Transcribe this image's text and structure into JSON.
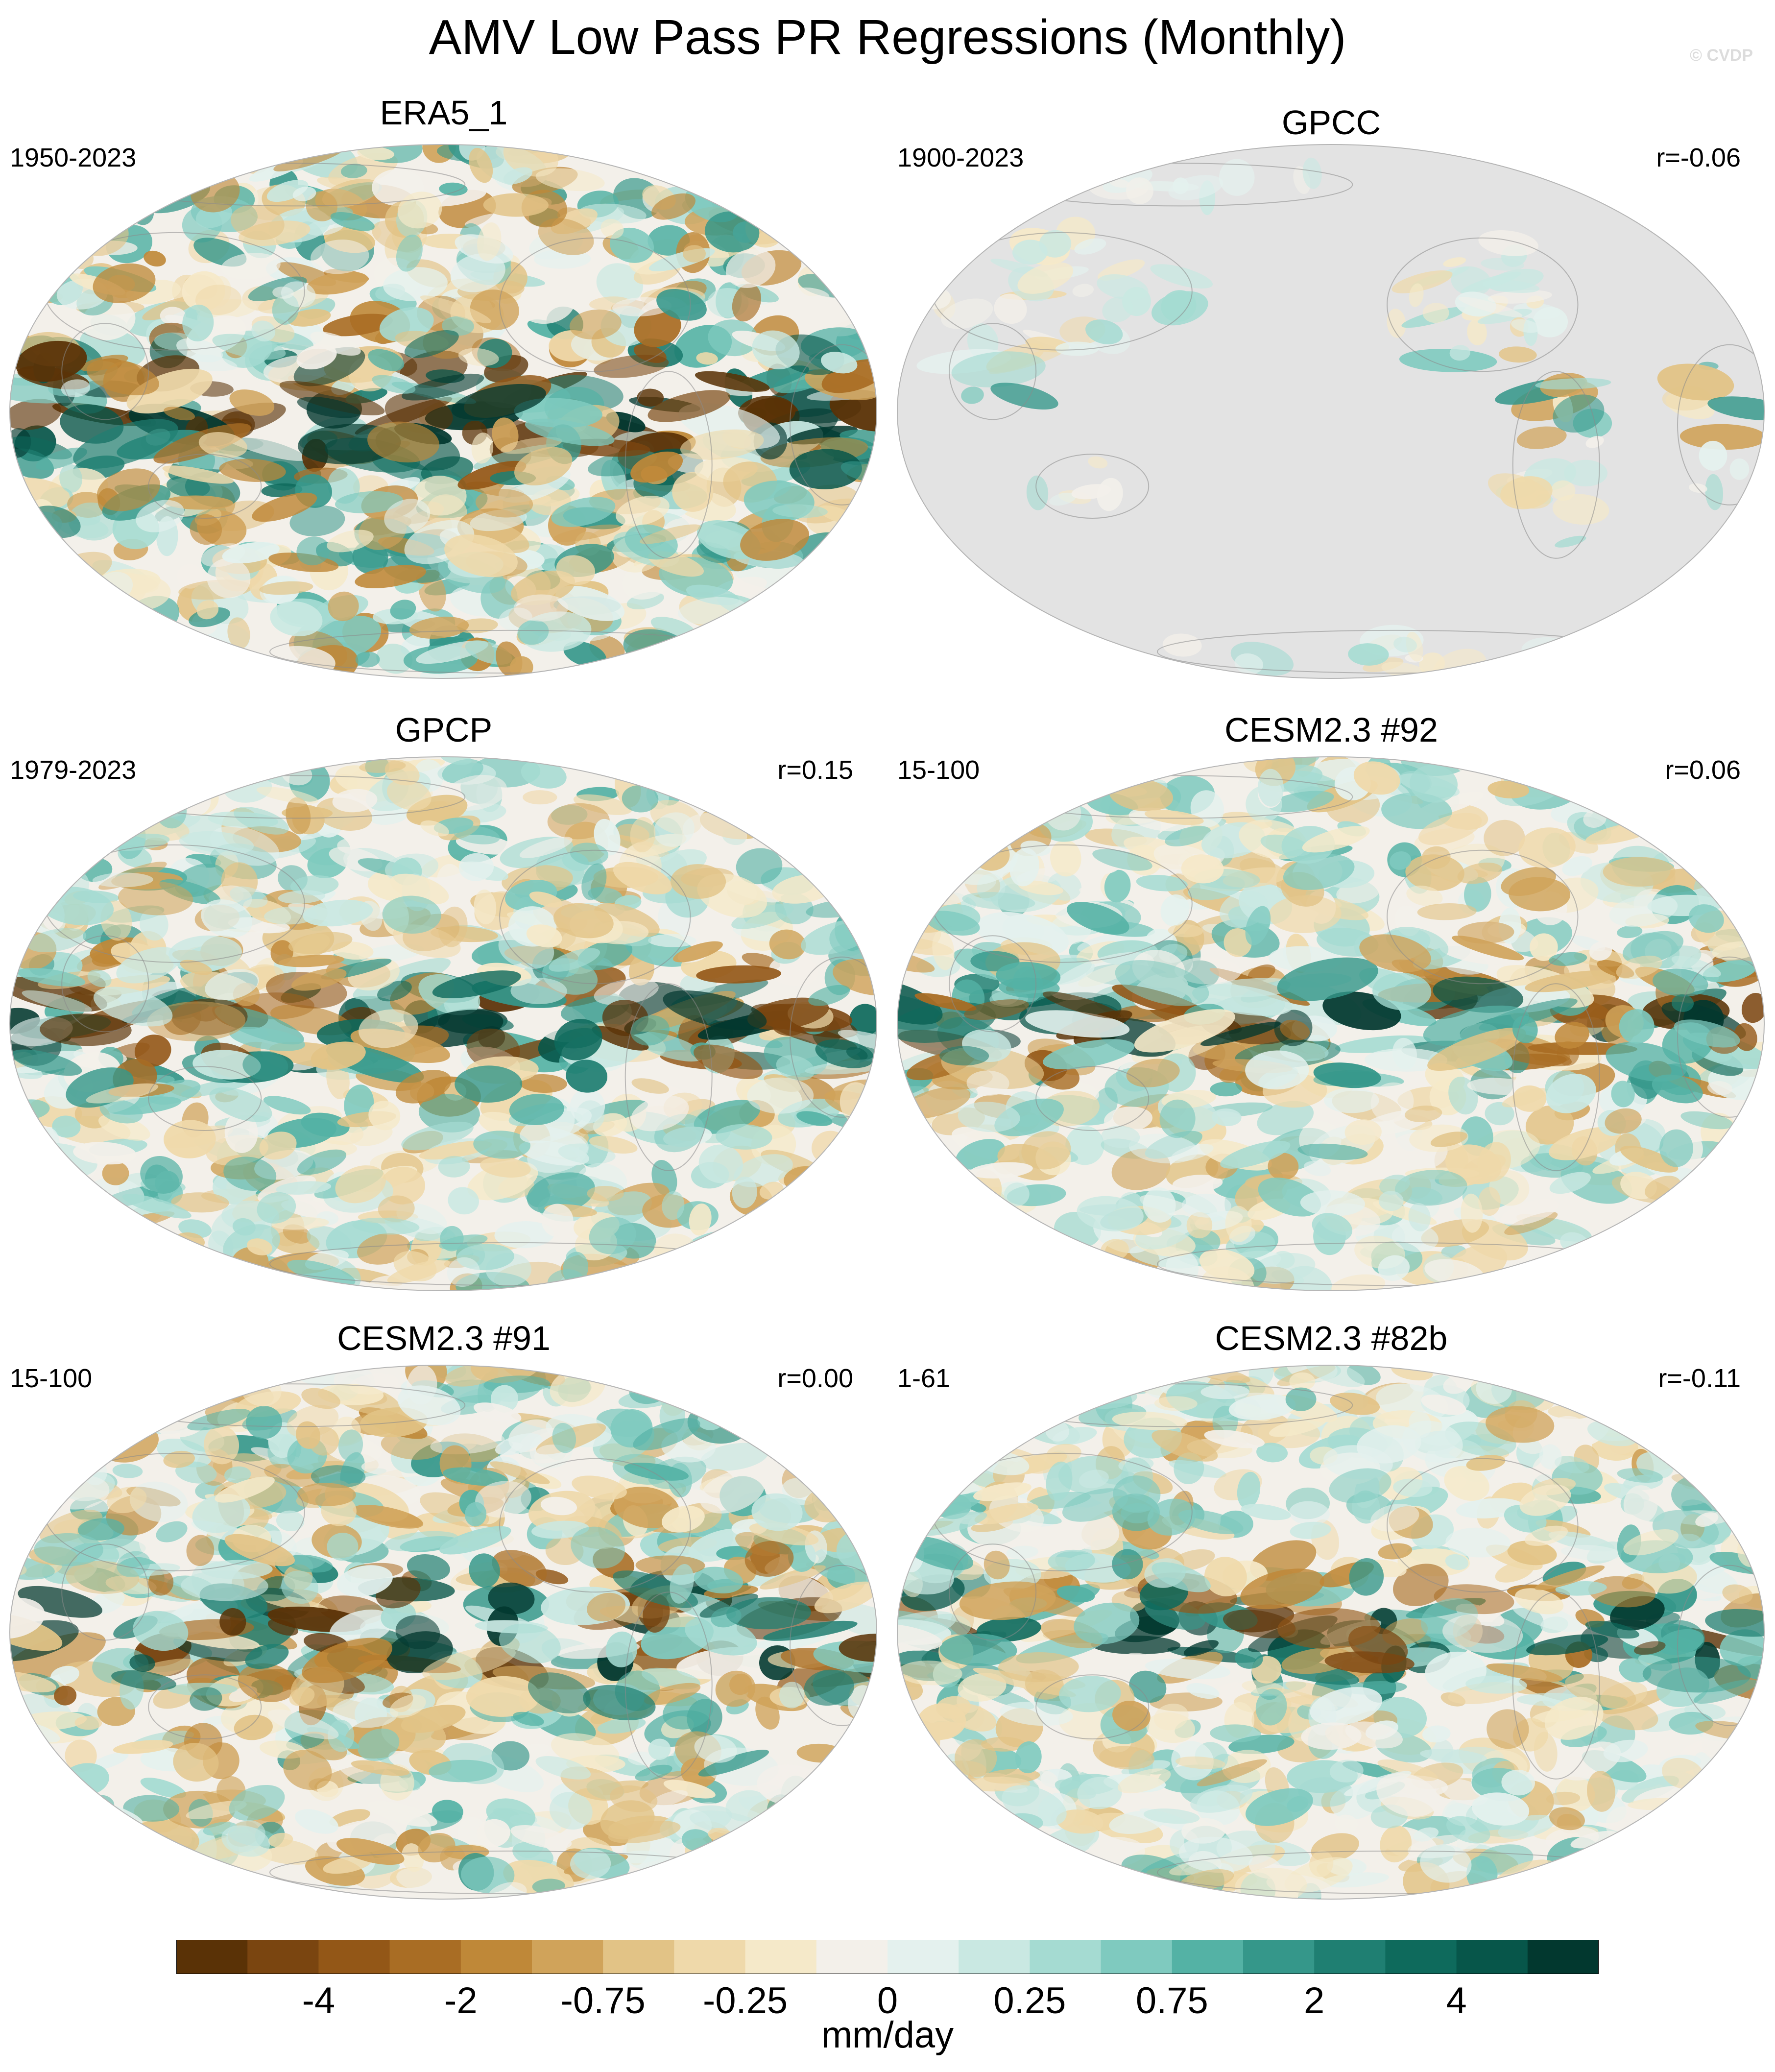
{
  "title": "AMV Low Pass PR Regressions (Monthly)",
  "credit": "© CVDP",
  "panels": [
    {
      "title": "ERA5_1",
      "years": "1950-2023",
      "r": "",
      "fill": "full",
      "seed": 11,
      "intensity": 1.15
    },
    {
      "title": "GPCC",
      "years": "1900-2023",
      "r": "r=-0.06",
      "fill": "land",
      "seed": 23,
      "intensity": 0.45
    },
    {
      "title": "GPCP",
      "years": "1979-2023",
      "r": "r=0.15",
      "fill": "full",
      "seed": 37,
      "intensity": 0.9
    },
    {
      "title": "CESM2.3 #92",
      "years": "15-100",
      "r": "r=0.06",
      "fill": "full",
      "seed": 41,
      "intensity": 0.8
    },
    {
      "title": "CESM2.3 #91",
      "years": "15-100",
      "r": "r=0.00",
      "fill": "full",
      "seed": 53,
      "intensity": 1.0
    },
    {
      "title": "CESM2.3 #82b",
      "years": "1-61",
      "r": "r=-0.11",
      "fill": "full",
      "seed": 67,
      "intensity": 0.8
    }
  ],
  "colorbar": {
    "labels": [
      "-4",
      "-2",
      "-0.75",
      "-0.25",
      "0",
      "0.25",
      "0.75",
      "2",
      "4"
    ],
    "units": "mm/day",
    "colors": [
      "#5a3206",
      "#7a4510",
      "#935717",
      "#a96d24",
      "#bf8838",
      "#d0a35a",
      "#e2c386",
      "#efd9aa",
      "#f5e9c9",
      "#f3f0ea",
      "#e4f1ee",
      "#c9e8e2",
      "#a5dbd2",
      "#7fcabf",
      "#54b2a5",
      "#35978a",
      "#1f7f72",
      "#0e6a5c",
      "#07564a",
      "#02382f"
    ]
  },
  "land_gray": "#e3e3e3"
}
